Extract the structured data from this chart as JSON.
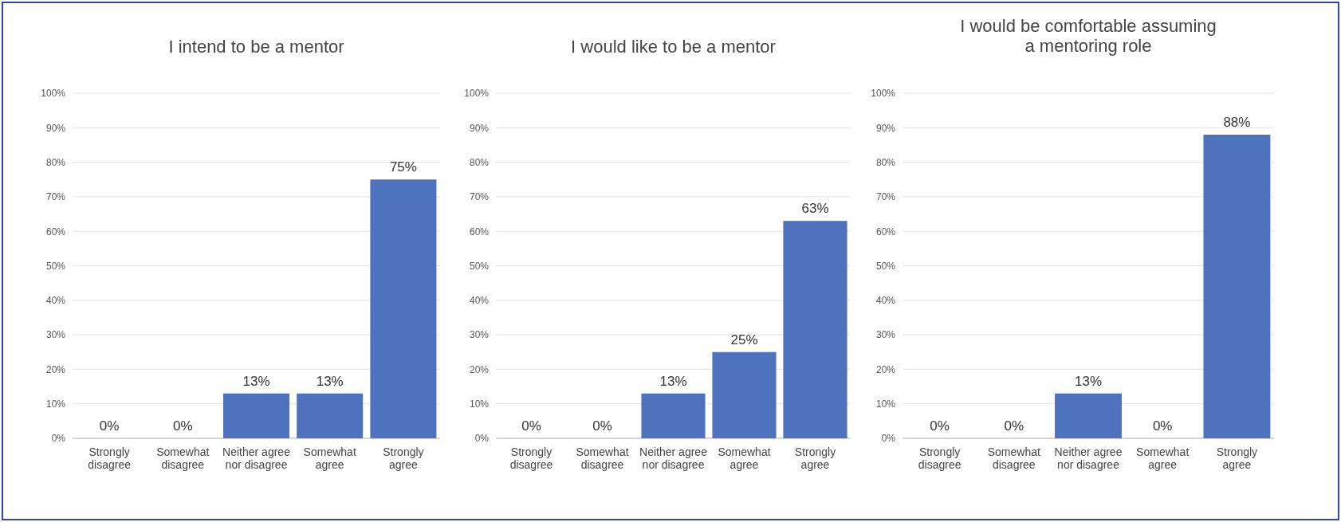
{
  "chart_data": [
    {
      "type": "bar",
      "title": "I intend to be a mentor",
      "categories": [
        "Strongly disagree",
        "Somewhat disagree",
        "Neither agree nor disagree",
        "Somewhat agree",
        "Strongly agree"
      ],
      "values": [
        0,
        0,
        13,
        13,
        75
      ],
      "color": "#4e72be",
      "ylim": [
        0,
        100
      ],
      "yticks": [
        {
          "value": 0,
          "label": "0%"
        },
        {
          "value": 10,
          "label": "10%"
        },
        {
          "value": 20,
          "label": "20%"
        },
        {
          "value": 30,
          "label": "30%"
        },
        {
          "value": 40,
          "label": "40%"
        },
        {
          "value": 50,
          "label": "50%"
        },
        {
          "value": 60,
          "label": "60%"
        },
        {
          "value": 70,
          "label": "70%"
        },
        {
          "value": 80,
          "label": "80%"
        },
        {
          "value": 90,
          "label": "90%"
        },
        {
          "value": 100,
          "label": "100%"
        }
      ],
      "grid": "y",
      "data_labels": true,
      "value_labels": [
        "0%",
        "0%",
        "13%",
        "13%",
        "75%"
      ]
    },
    {
      "type": "bar",
      "title": "I would like to be a mentor",
      "categories": [
        "Strongly disagree",
        "Somewhat disagree",
        "Neither agree nor disagree",
        "Somewhat agree",
        "Strongly agree"
      ],
      "values": [
        0,
        0,
        13,
        25,
        63
      ],
      "color": "#4e72be",
      "ylim": [
        0,
        100
      ],
      "yticks": [
        {
          "value": 0,
          "label": "0%"
        },
        {
          "value": 10,
          "label": "10%"
        },
        {
          "value": 20,
          "label": "20%"
        },
        {
          "value": 30,
          "label": "30%"
        },
        {
          "value": 40,
          "label": "40%"
        },
        {
          "value": 50,
          "label": "50%"
        },
        {
          "value": 60,
          "label": "60%"
        },
        {
          "value": 70,
          "label": "70%"
        },
        {
          "value": 80,
          "label": "80%"
        },
        {
          "value": 90,
          "label": "90%"
        },
        {
          "value": 100,
          "label": "100%"
        }
      ],
      "grid": "y",
      "data_labels": true,
      "value_labels": [
        "0%",
        "0%",
        "13%",
        "25%",
        "63%"
      ]
    },
    {
      "type": "bar",
      "title": "I would be comfortable assuming a mentoring role",
      "categories": [
        "Strongly disagree",
        "Somewhat disagree",
        "Neither agree nor disagree",
        "Somewhat agree",
        "Strongly agree"
      ],
      "values": [
        0,
        0,
        13,
        0,
        88
      ],
      "color": "#4e72be",
      "ylim": [
        0,
        100
      ],
      "yticks": [
        {
          "value": 0,
          "label": "0%"
        },
        {
          "value": 10,
          "label": "10%"
        },
        {
          "value": 20,
          "label": "20%"
        },
        {
          "value": 30,
          "label": "30%"
        },
        {
          "value": 40,
          "label": "40%"
        },
        {
          "value": 50,
          "label": "50%"
        },
        {
          "value": 60,
          "label": "60%"
        },
        {
          "value": 70,
          "label": "70%"
        },
        {
          "value": 80,
          "label": "80%"
        },
        {
          "value": 90,
          "label": "90%"
        },
        {
          "value": 100,
          "label": "100%"
        }
      ],
      "grid": "y",
      "data_labels": true,
      "value_labels": [
        "0%",
        "0%",
        "13%",
        "0%",
        "88%"
      ]
    }
  ]
}
